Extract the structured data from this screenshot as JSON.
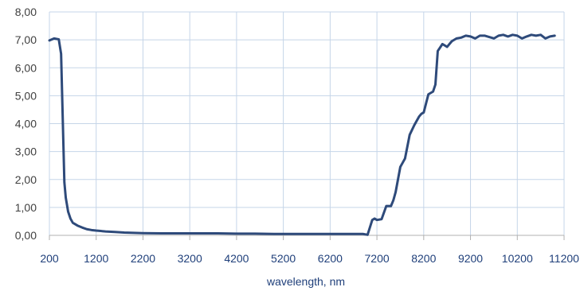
{
  "chart_data": {
    "type": "line",
    "title": "",
    "xlabel": "wavelength, nm",
    "ylabel": "",
    "xlim": [
      200,
      11200
    ],
    "ylim": [
      0,
      8
    ],
    "grid": true,
    "legend": "none",
    "x_ticks": [
      "200",
      "1200",
      "2200",
      "3200",
      "4200",
      "5200",
      "6200",
      "7200",
      "8200",
      "9200",
      "10200",
      "11200"
    ],
    "y_ticks": [
      "0,00",
      "1,00",
      "2,00",
      "3,00",
      "4,00",
      "5,00",
      "6,00",
      "7,00",
      "8,00"
    ],
    "colors": {
      "line": "#2e4a7a",
      "grid": "#c5d5e8",
      "axis": "#b0b0b0"
    },
    "series": [
      {
        "x": [
          200,
          300,
          400,
          450,
          500,
          520,
          550,
          600,
          650,
          700,
          800,
          900,
          1000,
          1100,
          1200,
          1400,
          1600,
          1800,
          2000,
          2200,
          2600,
          3000,
          3400,
          3800,
          4200,
          4600,
          5000,
          5400,
          5800,
          6200,
          6600,
          6900,
          7000,
          7100,
          7150,
          7200,
          7300,
          7400,
          7500,
          7550,
          7600,
          7700,
          7750,
          7800,
          7900,
          8000,
          8100,
          8150,
          8200,
          8300,
          8400,
          8450,
          8500,
          8600,
          8700,
          8800,
          8900,
          9000,
          9100,
          9200,
          9300,
          9400,
          9500,
          9600,
          9700,
          9800,
          9900,
          10000,
          10100,
          10200,
          10300,
          10400,
          10500,
          10600,
          10700,
          10800,
          10900,
          11000
        ],
        "y": [
          6.98,
          7.05,
          7.02,
          6.5,
          3.2,
          1.9,
          1.35,
          0.85,
          0.6,
          0.45,
          0.35,
          0.28,
          0.22,
          0.19,
          0.17,
          0.14,
          0.12,
          0.1,
          0.09,
          0.08,
          0.07,
          0.07,
          0.07,
          0.07,
          0.06,
          0.06,
          0.05,
          0.05,
          0.05,
          0.05,
          0.05,
          0.05,
          0.02,
          0.55,
          0.6,
          0.55,
          0.58,
          1.05,
          1.05,
          1.25,
          1.55,
          2.45,
          2.6,
          2.75,
          3.6,
          3.95,
          4.25,
          4.35,
          4.4,
          5.05,
          5.15,
          5.4,
          6.6,
          6.85,
          6.75,
          6.95,
          7.05,
          7.08,
          7.15,
          7.12,
          7.05,
          7.15,
          7.15,
          7.1,
          7.05,
          7.15,
          7.18,
          7.12,
          7.18,
          7.15,
          7.05,
          7.12,
          7.18,
          7.15,
          7.18,
          7.05,
          7.12,
          7.15
        ]
      }
    ]
  }
}
